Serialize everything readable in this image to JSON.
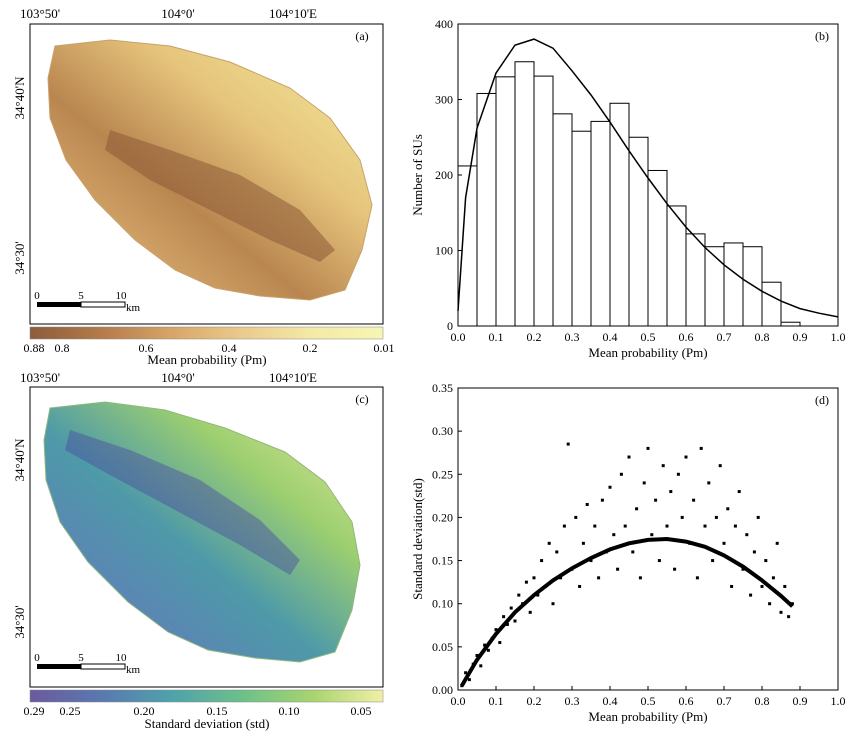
{
  "map_a": {
    "panel_label": "(a)",
    "lon_labels": [
      "103°50'",
      "104°0'",
      "104°10'E"
    ],
    "lat_labels": [
      "34°40'N",
      "34°30'"
    ],
    "scalebar": {
      "ticks": [
        "0",
        "5",
        "10"
      ],
      "unit": "km"
    },
    "colorbar": {
      "tick_labels": [
        "0.88",
        "0.8",
        "0.6",
        "0.4",
        "0.2",
        "0.01"
      ],
      "title": "Mean probability (Pm)",
      "colors": [
        "#8c5c3c",
        "#b47a4a",
        "#d8a468",
        "#eacb8c",
        "#f4eaa6",
        "#f6f6b2"
      ]
    }
  },
  "map_c": {
    "panel_label": "(c)",
    "lon_labels": [
      "103°50'",
      "104°0'",
      "104°10'E"
    ],
    "lat_labels": [
      "34°40'N",
      "34°30'"
    ],
    "scalebar": {
      "ticks": [
        "0",
        "5",
        "10"
      ],
      "unit": "km"
    },
    "colorbar": {
      "tick_labels": [
        "0.29",
        "0.25",
        "0.20",
        "0.15",
        "0.10",
        "0.05"
      ],
      "title": "Standard deviation (std)",
      "colors": [
        "#6a5a9e",
        "#5a78b0",
        "#4ea2ac",
        "#6cc08a",
        "#a8d46e",
        "#f0f0a6"
      ]
    }
  },
  "chart_data": [
    {
      "type": "bar",
      "panel_label": "(b)",
      "xlabel": "Mean probability (Pm)",
      "ylabel": "Number of SUs",
      "xlim": [
        0,
        1
      ],
      "ylim": [
        0,
        400
      ],
      "x_ticks": [
        "0.0",
        "0.1",
        "0.2",
        "0.3",
        "0.4",
        "0.5",
        "0.6",
        "0.7",
        "0.8",
        "0.9",
        "1.0"
      ],
      "y_ticks": [
        "0",
        "100",
        "200",
        "300",
        "400"
      ],
      "bin_width": 0.05,
      "bin_starts": [
        0,
        0.05,
        0.1,
        0.15,
        0.2,
        0.25,
        0.3,
        0.35,
        0.4,
        0.45,
        0.5,
        0.55,
        0.6,
        0.65,
        0.7,
        0.75,
        0.8,
        0.85
      ],
      "values": [
        212,
        308,
        330,
        350,
        331,
        281,
        258,
        271,
        295,
        250,
        206,
        159,
        122,
        105,
        110,
        105,
        58,
        5
      ],
      "curve": {
        "x": [
          0.0,
          0.02,
          0.05,
          0.1,
          0.15,
          0.2,
          0.25,
          0.3,
          0.35,
          0.4,
          0.45,
          0.5,
          0.55,
          0.6,
          0.65,
          0.7,
          0.75,
          0.8,
          0.85,
          0.9,
          0.95,
          1.0
        ],
        "y": [
          20,
          170,
          262,
          335,
          372,
          380,
          368,
          338,
          306,
          270,
          232,
          196,
          162,
          131,
          104,
          81,
          62,
          46,
          33,
          23,
          17,
          12
        ]
      }
    },
    {
      "type": "scatter",
      "panel_label": "(d)",
      "xlabel": "Mean probability (Pm)",
      "ylabel": "Standard deviation(std)",
      "xlim": [
        0,
        1
      ],
      "ylim": [
        0,
        0.35
      ],
      "x_ticks": [
        "0.0",
        "0.1",
        "0.2",
        "0.3",
        "0.4",
        "0.5",
        "0.6",
        "0.7",
        "0.8",
        "0.9",
        "1.0"
      ],
      "y_ticks": [
        "0.00",
        "0.05",
        "0.10",
        "0.15",
        "0.20",
        "0.25",
        "0.30",
        "0.35"
      ],
      "trend": {
        "x": [
          0.01,
          0.05,
          0.1,
          0.15,
          0.2,
          0.25,
          0.3,
          0.35,
          0.4,
          0.45,
          0.5,
          0.55,
          0.6,
          0.65,
          0.7,
          0.75,
          0.8,
          0.85,
          0.88
        ],
        "y": [
          0.005,
          0.035,
          0.065,
          0.09,
          0.11,
          0.127,
          0.141,
          0.153,
          0.163,
          0.17,
          0.174,
          0.175,
          0.172,
          0.166,
          0.156,
          0.143,
          0.127,
          0.109,
          0.097
        ]
      },
      "points": [
        [
          0.01,
          0.005
        ],
        [
          0.02,
          0.02
        ],
        [
          0.03,
          0.012
        ],
        [
          0.04,
          0.03
        ],
        [
          0.05,
          0.04
        ],
        [
          0.06,
          0.028
        ],
        [
          0.07,
          0.052
        ],
        [
          0.08,
          0.046
        ],
        [
          0.09,
          0.06
        ],
        [
          0.1,
          0.07
        ],
        [
          0.11,
          0.055
        ],
        [
          0.12,
          0.085
        ],
        [
          0.13,
          0.076
        ],
        [
          0.14,
          0.095
        ],
        [
          0.15,
          0.08
        ],
        [
          0.16,
          0.11
        ],
        [
          0.17,
          0.1
        ],
        [
          0.18,
          0.125
        ],
        [
          0.19,
          0.09
        ],
        [
          0.2,
          0.13
        ],
        [
          0.21,
          0.11
        ],
        [
          0.22,
          0.15
        ],
        [
          0.23,
          0.12
        ],
        [
          0.24,
          0.17
        ],
        [
          0.25,
          0.1
        ],
        [
          0.26,
          0.16
        ],
        [
          0.27,
          0.13
        ],
        [
          0.28,
          0.19
        ],
        [
          0.29,
          0.285
        ],
        [
          0.3,
          0.14
        ],
        [
          0.31,
          0.2
        ],
        [
          0.32,
          0.12
        ],
        [
          0.33,
          0.17
        ],
        [
          0.34,
          0.215
        ],
        [
          0.35,
          0.15
        ],
        [
          0.36,
          0.19
        ],
        [
          0.37,
          0.13
        ],
        [
          0.38,
          0.22
        ],
        [
          0.39,
          0.16
        ],
        [
          0.4,
          0.235
        ],
        [
          0.41,
          0.18
        ],
        [
          0.42,
          0.14
        ],
        [
          0.43,
          0.25
        ],
        [
          0.44,
          0.19
        ],
        [
          0.45,
          0.27
        ],
        [
          0.46,
          0.16
        ],
        [
          0.47,
          0.21
        ],
        [
          0.48,
          0.13
        ],
        [
          0.49,
          0.24
        ],
        [
          0.5,
          0.28
        ],
        [
          0.51,
          0.18
        ],
        [
          0.52,
          0.22
        ],
        [
          0.53,
          0.15
        ],
        [
          0.54,
          0.26
        ],
        [
          0.55,
          0.19
        ],
        [
          0.56,
          0.23
        ],
        [
          0.57,
          0.14
        ],
        [
          0.58,
          0.25
        ],
        [
          0.59,
          0.2
        ],
        [
          0.6,
          0.27
        ],
        [
          0.61,
          0.17
        ],
        [
          0.62,
          0.22
        ],
        [
          0.63,
          0.13
        ],
        [
          0.64,
          0.28
        ],
        [
          0.65,
          0.19
        ],
        [
          0.66,
          0.24
        ],
        [
          0.67,
          0.15
        ],
        [
          0.68,
          0.2
        ],
        [
          0.69,
          0.26
        ],
        [
          0.7,
          0.17
        ],
        [
          0.71,
          0.21
        ],
        [
          0.72,
          0.12
        ],
        [
          0.73,
          0.19
        ],
        [
          0.74,
          0.23
        ],
        [
          0.75,
          0.14
        ],
        [
          0.76,
          0.18
        ],
        [
          0.77,
          0.11
        ],
        [
          0.78,
          0.16
        ],
        [
          0.79,
          0.2
        ],
        [
          0.8,
          0.12
        ],
        [
          0.81,
          0.15
        ],
        [
          0.82,
          0.1
        ],
        [
          0.83,
          0.13
        ],
        [
          0.84,
          0.17
        ],
        [
          0.85,
          0.09
        ],
        [
          0.86,
          0.12
        ],
        [
          0.87,
          0.085
        ],
        [
          0.88,
          0.1
        ]
      ]
    }
  ]
}
